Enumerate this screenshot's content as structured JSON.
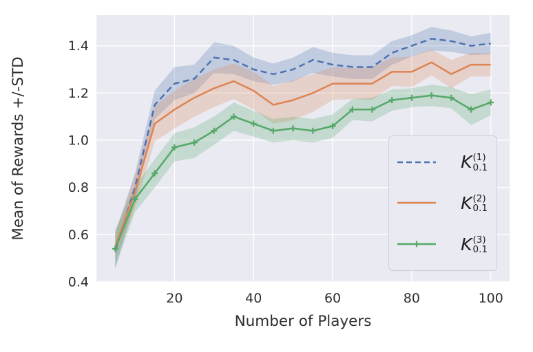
{
  "chart_data": {
    "type": "line",
    "title": "",
    "xlabel": "Number of Players",
    "ylabel": "Mean of Rewards +/-STD",
    "x": [
      5,
      10,
      15,
      20,
      25,
      30,
      35,
      40,
      45,
      50,
      55,
      60,
      65,
      70,
      75,
      80,
      85,
      90,
      95,
      100
    ],
    "xlim": [
      0.25,
      104.75
    ],
    "ylim": [
      0.4,
      1.53
    ],
    "xticks": {
      "values": [
        20,
        40,
        60,
        80,
        100
      ],
      "labels": [
        "20",
        "40",
        "60",
        "80",
        "100"
      ]
    },
    "yticks": {
      "values": [
        0.4,
        0.6,
        0.8,
        1.0,
        1.2,
        1.4
      ],
      "labels": [
        "0.4",
        "0.6",
        "0.8",
        "1.0",
        "1.2",
        "1.4"
      ]
    },
    "grid": true,
    "plot_background": "#eaeaf2",
    "grid_color": "#ffffff",
    "text_color": "#2e2e2e",
    "legend_position": "lower right",
    "series": [
      {
        "name": "K01_1",
        "legend": {
          "base": "K",
          "sup": "(1)",
          "sub": "0.1"
        },
        "color": "#4c72b0",
        "style": "dashed",
        "marker": "none",
        "values": [
          0.53,
          0.8,
          1.15,
          1.24,
          1.26,
          1.35,
          1.34,
          1.3,
          1.28,
          1.3,
          1.34,
          1.32,
          1.31,
          1.31,
          1.37,
          1.4,
          1.43,
          1.42,
          1.4,
          1.41
        ],
        "std": [
          0.075,
          0.06,
          0.06,
          0.07,
          0.06,
          0.065,
          0.06,
          0.05,
          0.045,
          0.05,
          0.055,
          0.05,
          0.05,
          0.05,
          0.05,
          0.045,
          0.05,
          0.045,
          0.04,
          0.045
        ]
      },
      {
        "name": "K01_2",
        "legend": {
          "base": "K",
          "sup": "(2)",
          "sub": "0.1"
        },
        "color": "#dd8452",
        "style": "solid",
        "marker": "none",
        "values": [
          0.55,
          0.78,
          1.07,
          1.13,
          1.18,
          1.22,
          1.25,
          1.21,
          1.15,
          1.17,
          1.2,
          1.24,
          1.24,
          1.24,
          1.29,
          1.29,
          1.33,
          1.28,
          1.32,
          1.32
        ],
        "std": [
          0.06,
          0.07,
          0.075,
          0.08,
          0.08,
          0.08,
          0.075,
          0.08,
          0.08,
          0.085,
          0.08,
          0.07,
          0.065,
          0.07,
          0.06,
          0.065,
          0.055,
          0.06,
          0.05,
          0.05
        ]
      },
      {
        "name": "K01_3",
        "legend": {
          "base": "K",
          "sup": "(3)",
          "sub": "0.1"
        },
        "color": "#55a868",
        "style": "solid",
        "marker": "plus",
        "values": [
          0.54,
          0.75,
          0.86,
          0.97,
          0.99,
          1.04,
          1.1,
          1.07,
          1.04,
          1.05,
          1.04,
          1.06,
          1.13,
          1.13,
          1.17,
          1.18,
          1.19,
          1.18,
          1.13,
          1.16
        ],
        "std": [
          0.08,
          0.055,
          0.06,
          0.06,
          0.065,
          0.06,
          0.06,
          0.055,
          0.05,
          0.05,
          0.05,
          0.05,
          0.045,
          0.05,
          0.045,
          0.04,
          0.045,
          0.045,
          0.065,
          0.055
        ]
      }
    ]
  }
}
